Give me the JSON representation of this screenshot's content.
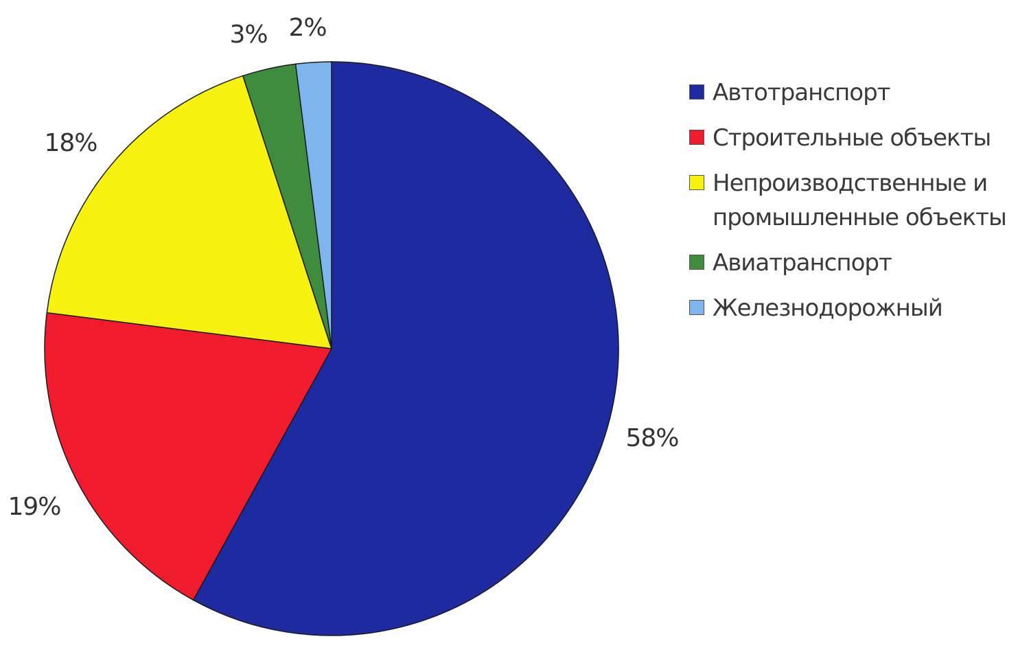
{
  "chart_data": {
    "type": "pie",
    "title": "",
    "series": [
      {
        "values": [
          58,
          19,
          18,
          3,
          2
        ]
      }
    ],
    "categories": [
      "Автотранспорт",
      "Строительные объекты",
      "Непроизводственные и промышленные объекты",
      "Авиатранспорт",
      "Железнодорожный"
    ],
    "slices": [
      {
        "label": "Автотранспорт",
        "value": 58,
        "value_label": "58%",
        "color": "#1e2aa0"
      },
      {
        "label": "Строительные объекты",
        "value": 19,
        "value_label": "19%",
        "color": "#f01c2e"
      },
      {
        "label": "Непроизводственные и промышленные объекты",
        "value": 18,
        "value_label": "18%",
        "color": "#f7f20f"
      },
      {
        "label": "Авиатранспорт",
        "value": 3,
        "value_label": "3%",
        "color": "#3f8c3f"
      },
      {
        "label": "Железнодорожный",
        "value": 2,
        "value_label": "2%",
        "color": "#7fb5ef"
      }
    ],
    "start_angle_deg": 0,
    "direction": "clockwise",
    "legend_position": "right"
  }
}
